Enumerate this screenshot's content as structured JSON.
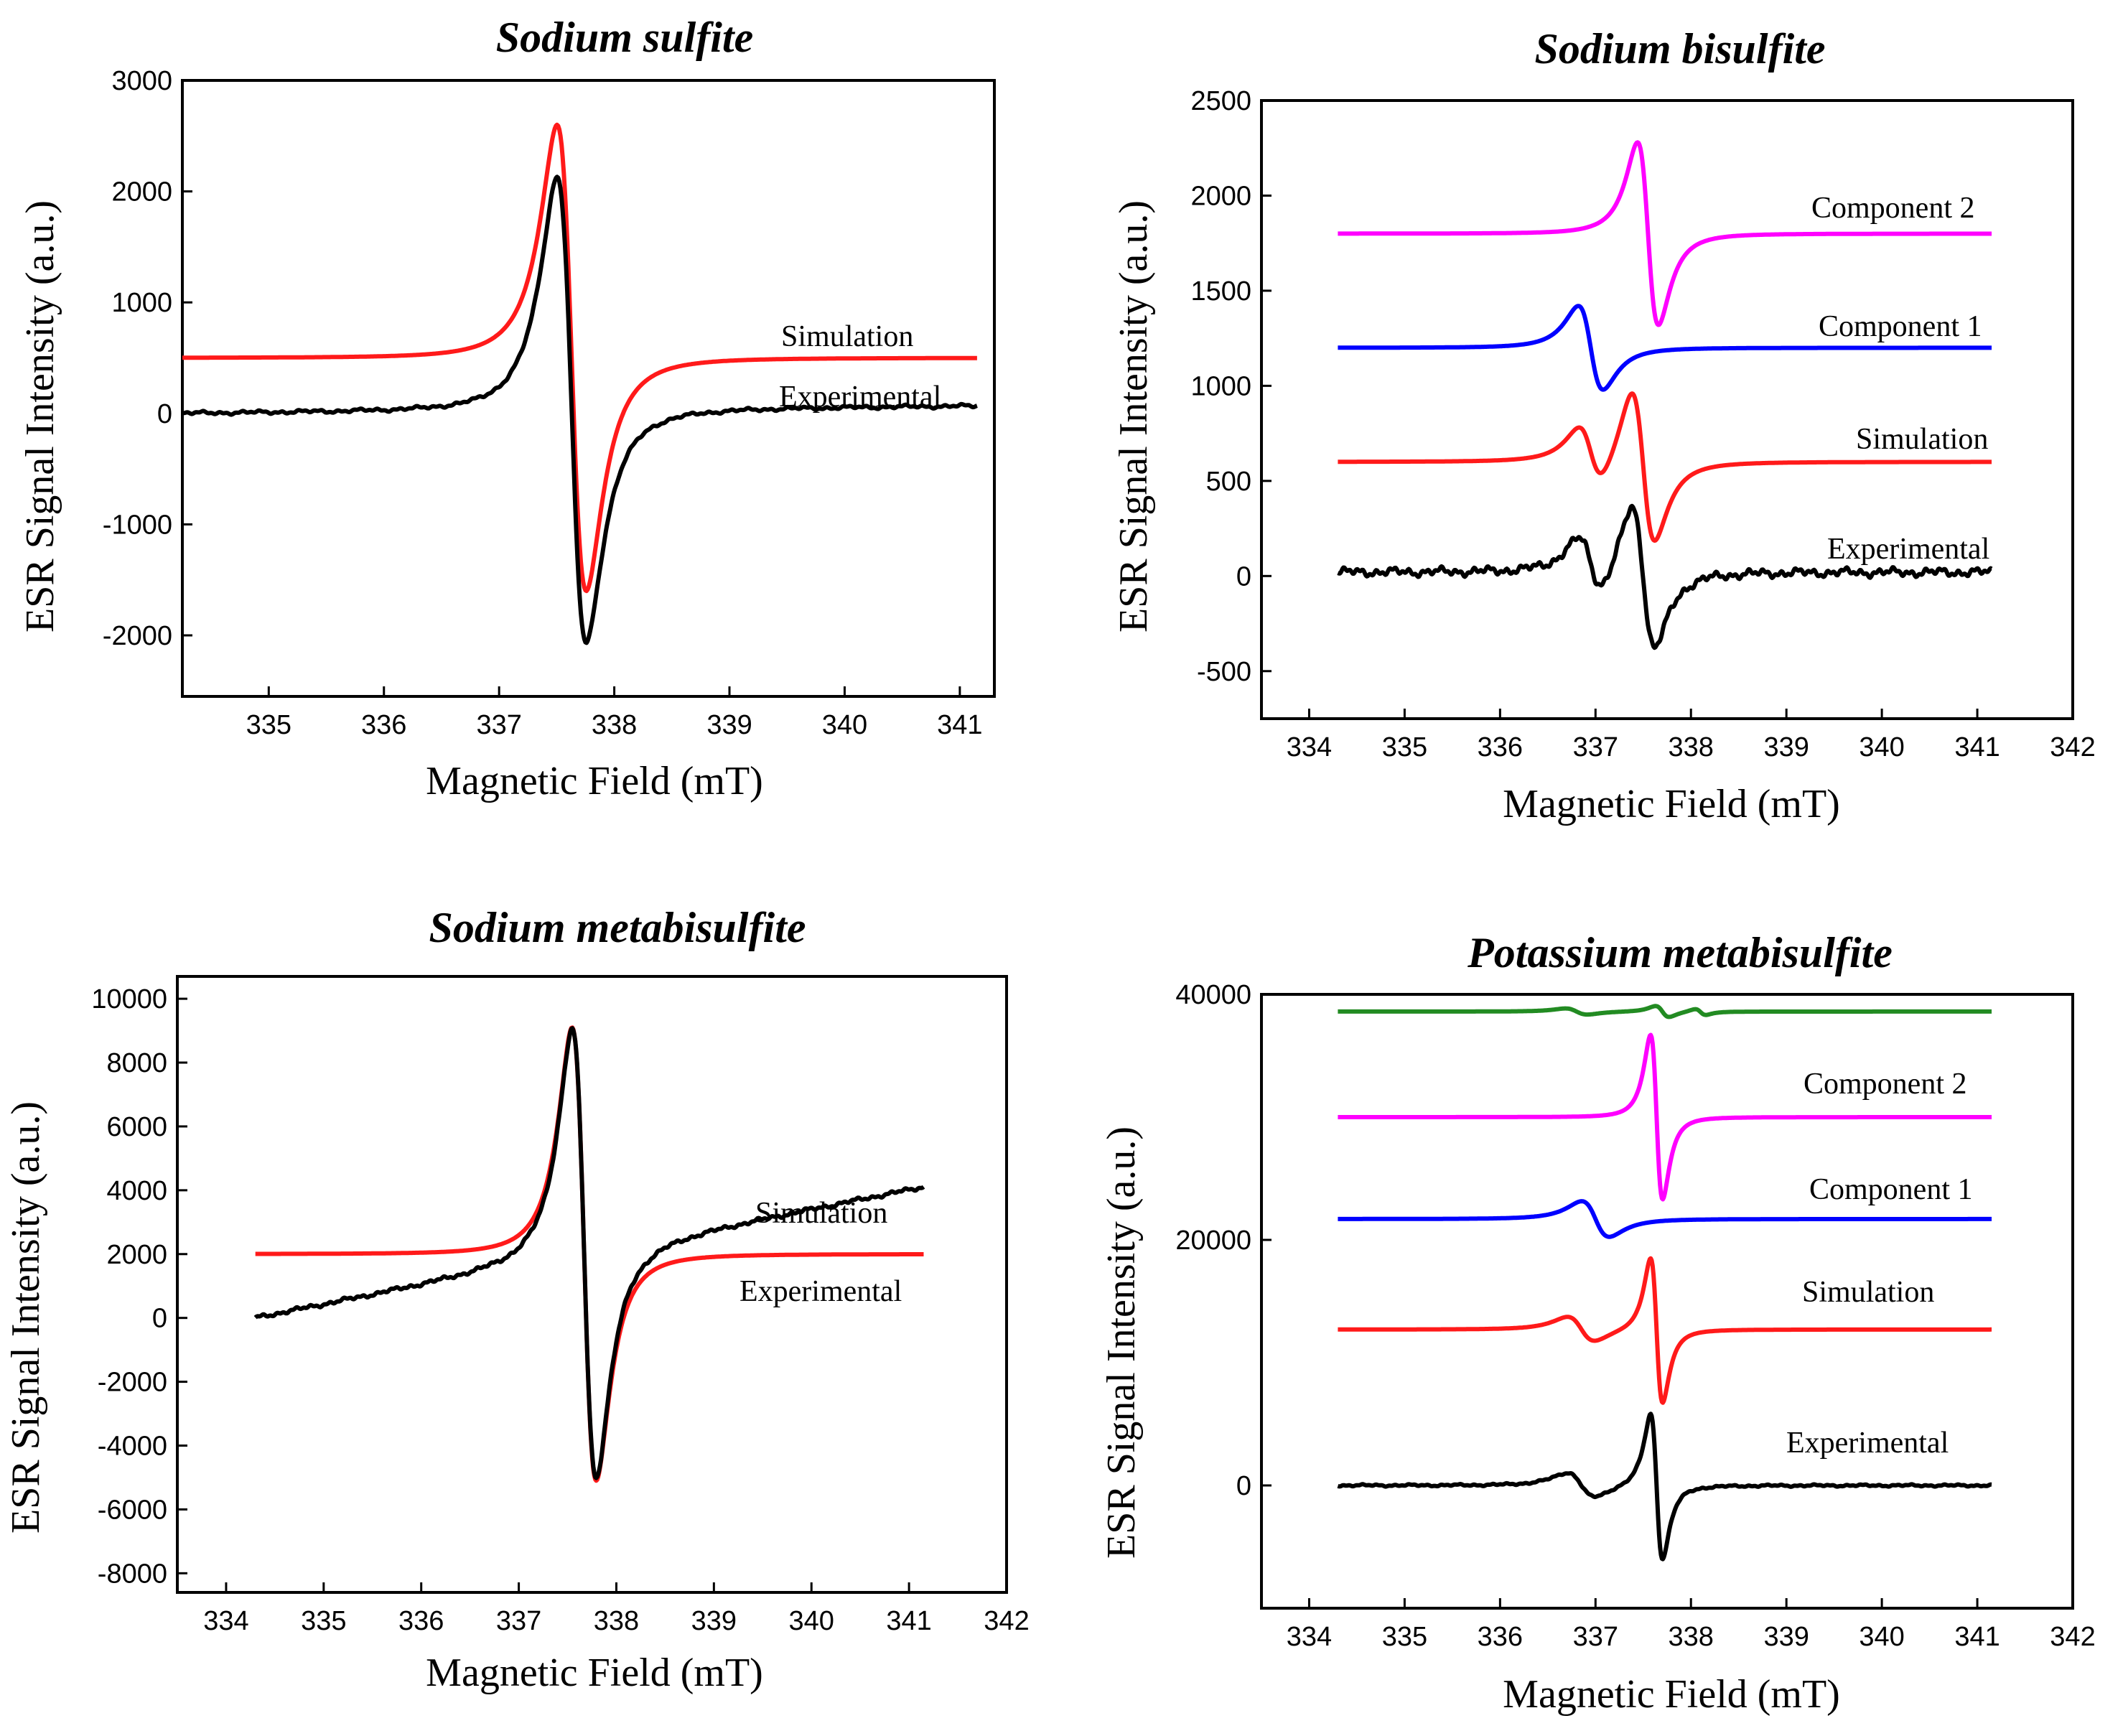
{
  "chart_data": [
    {
      "type": "line",
      "title": "Sodium sulfite",
      "xlabel": "Magnetic Field (mT)",
      "ylabel": "ESR Signal Intensity (a.u.)",
      "xlim": [
        334.25,
        341.3
      ],
      "ylim": [
        -2550,
        3000
      ],
      "xticks": [
        335,
        336,
        337,
        338,
        339,
        340,
        341
      ],
      "yticks": [
        -2000,
        -1000,
        0,
        1000,
        2000,
        3000
      ],
      "x_range": [
        334.25,
        341.15
      ],
      "series": [
        {
          "name": "Simulation",
          "color": "#ff1a1a",
          "baseline": 500,
          "lines": [
            {
              "center": 337.63,
              "width": 0.44,
              "amp": 2100
            }
          ]
        },
        {
          "name": "Experimental",
          "color": "#000000",
          "baseline": 0,
          "slope": 0.5,
          "noise": 15,
          "lines": [
            {
              "center": 337.63,
              "width": 0.44,
              "amp": 2100
            }
          ]
        }
      ],
      "annotations": [
        "Simulation",
        "Experimental"
      ]
    },
    {
      "type": "line",
      "title": "Sodium bisulfite",
      "xlabel": "Magnetic Field (mT)",
      "ylabel": "ESR Signal Intensity (a.u.)",
      "xlim": [
        333.5,
        342
      ],
      "ylim": [
        -750,
        2500
      ],
      "xticks": [
        334,
        335,
        336,
        337,
        338,
        339,
        340,
        341,
        342
      ],
      "yticks": [
        -500,
        0,
        500,
        1000,
        1500,
        2000,
        2500
      ],
      "x_range": [
        334.3,
        341.15
      ],
      "series": [
        {
          "name": "Component 2",
          "color": "#ff00ff",
          "baseline": 1800,
          "lines": [
            {
              "center": 337.55,
              "width": 0.38,
              "amp": 480
            }
          ]
        },
        {
          "name": "Component 1",
          "color": "#0000ff",
          "baseline": 1200,
          "lines": [
            {
              "center": 336.95,
              "width": 0.45,
              "amp": 220
            }
          ]
        },
        {
          "name": "Simulation",
          "color": "#ff1a1a",
          "baseline": 600,
          "lines": [
            {
              "center": 337.5,
              "width": 0.42,
              "amp": 400
            },
            {
              "center": 336.95,
              "width": 0.45,
              "amp": 150
            }
          ]
        },
        {
          "name": "Experimental",
          "color": "#000000",
          "baseline": 20,
          "noise": 22,
          "lines": [
            {
              "center": 337.5,
              "width": 0.42,
              "amp": 380
            },
            {
              "center": 336.95,
              "width": 0.45,
              "amp": 150
            }
          ]
        }
      ],
      "annotations": [
        "Component 2",
        "Component 1",
        "Simulation",
        "Experimental"
      ]
    },
    {
      "type": "line",
      "title": "Sodium metabisulfite",
      "xlabel": "Magnetic Field (mT)",
      "ylabel": "ESR Signal Intensity (a.u.)",
      "xlim": [
        333.5,
        342
      ],
      "ylim": [
        -8600,
        10700
      ],
      "xticks": [
        334,
        335,
        336,
        337,
        338,
        339,
        340,
        341,
        342
      ],
      "yticks": [
        -8000,
        -6000,
        -4000,
        -2000,
        0,
        2000,
        4000,
        6000,
        8000,
        10000
      ],
      "x_range": [
        334.3,
        341.15
      ],
      "series": [
        {
          "name": "Simulation",
          "color": "#ff1a1a",
          "baseline": 2000,
          "lines": [
            {
              "center": 337.67,
              "width": 0.43,
              "amp": 7100
            }
          ]
        },
        {
          "name": "Experimental",
          "color": "#000000",
          "baseline": 0,
          "slope": 30,
          "noise": 60,
          "lines": [
            {
              "center": 337.67,
              "width": 0.43,
              "amp": 7100
            }
          ]
        }
      ],
      "annotations": [
        "Simulation",
        "Experimental"
      ]
    },
    {
      "type": "line",
      "title": "Potassium metabisulfite",
      "xlabel": "Magnetic Field (mT)",
      "ylabel": "ESR Signal Intensity (a.u.)",
      "xlim": [
        333.5,
        342
      ],
      "ylim": [
        -10000,
        40000
      ],
      "xticks": [
        334,
        335,
        336,
        337,
        338,
        339,
        340,
        341,
        342
      ],
      "yticks": [
        0,
        20000,
        40000
      ],
      "x_range": [
        334.3,
        341.15
      ],
      "series": [
        {
          "name": "",
          "color": "#228B22",
          "baseline": 38600,
          "lines": [
            {
              "center": 337.7,
              "width": 0.25,
              "amp": 450
            },
            {
              "center": 336.8,
              "width": 0.4,
              "amp": 250
            },
            {
              "center": 338.1,
              "width": 0.2,
              "amp": 250
            }
          ]
        },
        {
          "name": "Component 2",
          "color": "#ff00ff",
          "baseline": 30000,
          "lines": [
            {
              "center": 337.64,
              "width": 0.22,
              "amp": 6700
            }
          ]
        },
        {
          "name": "Component 1",
          "color": "#0000ff",
          "baseline": 21700,
          "lines": [
            {
              "center": 337.0,
              "width": 0.5,
              "amp": 1450
            }
          ]
        },
        {
          "name": "Simulation",
          "color": "#ff1a1a",
          "baseline": 12700,
          "lines": [
            {
              "center": 337.64,
              "width": 0.22,
              "amp": 5900
            },
            {
              "center": 336.85,
              "width": 0.5,
              "amp": 1000
            }
          ]
        },
        {
          "name": "Experimental",
          "color": "#000000",
          "baseline": 0,
          "noise": 80,
          "lines": [
            {
              "center": 337.64,
              "width": 0.22,
              "amp": 5900
            },
            {
              "center": 336.85,
              "width": 0.5,
              "amp": 1000
            }
          ]
        }
      ],
      "annotations": [
        "Component 2",
        "Component 1",
        "Simulation",
        "Experimental"
      ]
    }
  ]
}
